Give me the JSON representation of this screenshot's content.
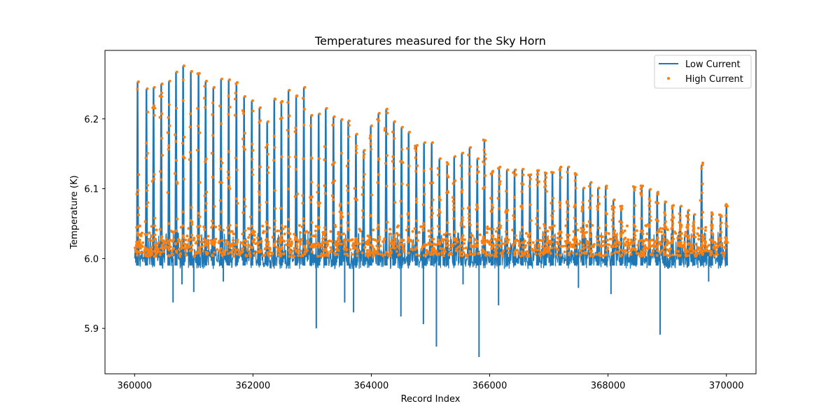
{
  "chart_data": {
    "type": "line",
    "title": "Temperatures measured for the Sky Horn",
    "xlabel": "Record Index",
    "ylabel": "Temperature (K)",
    "xlim": [
      359500,
      370500
    ],
    "ylim": [
      5.835,
      6.298
    ],
    "x_ticks": [
      360000,
      362000,
      364000,
      366000,
      368000,
      370000
    ],
    "x_tick_labels": [
      "360000",
      "362000",
      "364000",
      "366000",
      "368000",
      "370000"
    ],
    "y_ticks": [
      5.9,
      6.0,
      6.1,
      6.2
    ],
    "y_tick_labels": [
      "5.9",
      "6.0",
      "6.1",
      "6.2"
    ],
    "grid": false,
    "legend_position": "top-right",
    "baseline": {
      "low_current_center": 6.002,
      "low_current_min": 5.985,
      "low_current_max": 6.04,
      "high_current_center": 6.012,
      "high_current_min": 6.003,
      "high_current_max": 6.028
    },
    "x_range": [
      360000,
      370000
    ],
    "series": [
      {
        "name": "Low Current",
        "style": "line",
        "color": "#1f77b4",
        "spike_peaks": [
          {
            "x": 360050,
            "y": 6.253
          },
          {
            "x": 360200,
            "y": 6.243
          },
          {
            "x": 360320,
            "y": 6.245
          },
          {
            "x": 360450,
            "y": 6.25
          },
          {
            "x": 360580,
            "y": 6.254
          },
          {
            "x": 360700,
            "y": 6.267
          },
          {
            "x": 360820,
            "y": 6.276
          },
          {
            "x": 360950,
            "y": 6.268
          },
          {
            "x": 361080,
            "y": 6.265
          },
          {
            "x": 361200,
            "y": 6.254
          },
          {
            "x": 361330,
            "y": 6.245
          },
          {
            "x": 361460,
            "y": 6.257
          },
          {
            "x": 361590,
            "y": 6.256
          },
          {
            "x": 361720,
            "y": 6.252
          },
          {
            "x": 361850,
            "y": 6.232
          },
          {
            "x": 361980,
            "y": 6.226
          },
          {
            "x": 362110,
            "y": 6.216
          },
          {
            "x": 362240,
            "y": 6.196
          },
          {
            "x": 362360,
            "y": 6.228
          },
          {
            "x": 362480,
            "y": 6.225
          },
          {
            "x": 362600,
            "y": 6.241
          },
          {
            "x": 362730,
            "y": 6.233
          },
          {
            "x": 362860,
            "y": 6.245
          },
          {
            "x": 362980,
            "y": 6.205
          },
          {
            "x": 363110,
            "y": 6.207
          },
          {
            "x": 363230,
            "y": 6.215
          },
          {
            "x": 363360,
            "y": 6.203
          },
          {
            "x": 363490,
            "y": 6.199
          },
          {
            "x": 363610,
            "y": 6.197
          },
          {
            "x": 363740,
            "y": 6.178
          },
          {
            "x": 363870,
            "y": 6.155
          },
          {
            "x": 363990,
            "y": 6.19
          },
          {
            "x": 364120,
            "y": 6.208
          },
          {
            "x": 364250,
            "y": 6.214
          },
          {
            "x": 364380,
            "y": 6.196
          },
          {
            "x": 364510,
            "y": 6.188
          },
          {
            "x": 364630,
            "y": 6.181
          },
          {
            "x": 364760,
            "y": 6.162
          },
          {
            "x": 364890,
            "y": 6.166
          },
          {
            "x": 365020,
            "y": 6.166
          },
          {
            "x": 365150,
            "y": 6.143
          },
          {
            "x": 365280,
            "y": 6.135
          },
          {
            "x": 365400,
            "y": 6.146
          },
          {
            "x": 365530,
            "y": 6.151
          },
          {
            "x": 365660,
            "y": 6.159
          },
          {
            "x": 365790,
            "y": 6.143
          },
          {
            "x": 365910,
            "y": 6.169
          },
          {
            "x": 366040,
            "y": 6.125
          },
          {
            "x": 366160,
            "y": 6.131
          },
          {
            "x": 366290,
            "y": 6.127
          },
          {
            "x": 366420,
            "y": 6.127
          },
          {
            "x": 366550,
            "y": 6.128
          },
          {
            "x": 366680,
            "y": 6.12
          },
          {
            "x": 366810,
            "y": 6.126
          },
          {
            "x": 366940,
            "y": 6.122
          },
          {
            "x": 367060,
            "y": 6.123
          },
          {
            "x": 367190,
            "y": 6.131
          },
          {
            "x": 367320,
            "y": 6.131
          },
          {
            "x": 367450,
            "y": 6.12
          },
          {
            "x": 367580,
            "y": 6.101
          },
          {
            "x": 367700,
            "y": 6.109
          },
          {
            "x": 367830,
            "y": 6.101
          },
          {
            "x": 367960,
            "y": 6.104
          },
          {
            "x": 368090,
            "y": 6.084
          },
          {
            "x": 368220,
            "y": 6.075
          },
          {
            "x": 368440,
            "y": 6.102
          },
          {
            "x": 368570,
            "y": 6.104
          },
          {
            "x": 368700,
            "y": 6.099
          },
          {
            "x": 368830,
            "y": 6.095
          },
          {
            "x": 368960,
            "y": 6.081
          },
          {
            "x": 369090,
            "y": 6.076
          },
          {
            "x": 369220,
            "y": 6.075
          },
          {
            "x": 369350,
            "y": 6.069
          },
          {
            "x": 369450,
            "y": 6.063
          },
          {
            "x": 369580,
            "y": 6.134
          },
          {
            "x": 369750,
            "y": 6.063
          },
          {
            "x": 369900,
            "y": 6.06
          },
          {
            "x": 370000,
            "y": 6.075
          }
        ],
        "dips": [
          {
            "x": 360650,
            "y": 5.937
          },
          {
            "x": 360800,
            "y": 5.963
          },
          {
            "x": 361000,
            "y": 5.952
          },
          {
            "x": 361500,
            "y": 5.967
          },
          {
            "x": 363070,
            "y": 5.9
          },
          {
            "x": 363550,
            "y": 5.937
          },
          {
            "x": 363700,
            "y": 5.923
          },
          {
            "x": 364500,
            "y": 5.917
          },
          {
            "x": 364880,
            "y": 5.906
          },
          {
            "x": 365100,
            "y": 5.874
          },
          {
            "x": 365550,
            "y": 5.963
          },
          {
            "x": 365820,
            "y": 5.859
          },
          {
            "x": 366150,
            "y": 5.933
          },
          {
            "x": 367500,
            "y": 5.958
          },
          {
            "x": 368050,
            "y": 5.949
          },
          {
            "x": 368880,
            "y": 5.891
          },
          {
            "x": 369700,
            "y": 5.967
          }
        ]
      },
      {
        "name": "High Current",
        "style": "scatter",
        "color": "#ff7f0e",
        "spike_peaks_from": "Low Current"
      }
    ]
  }
}
